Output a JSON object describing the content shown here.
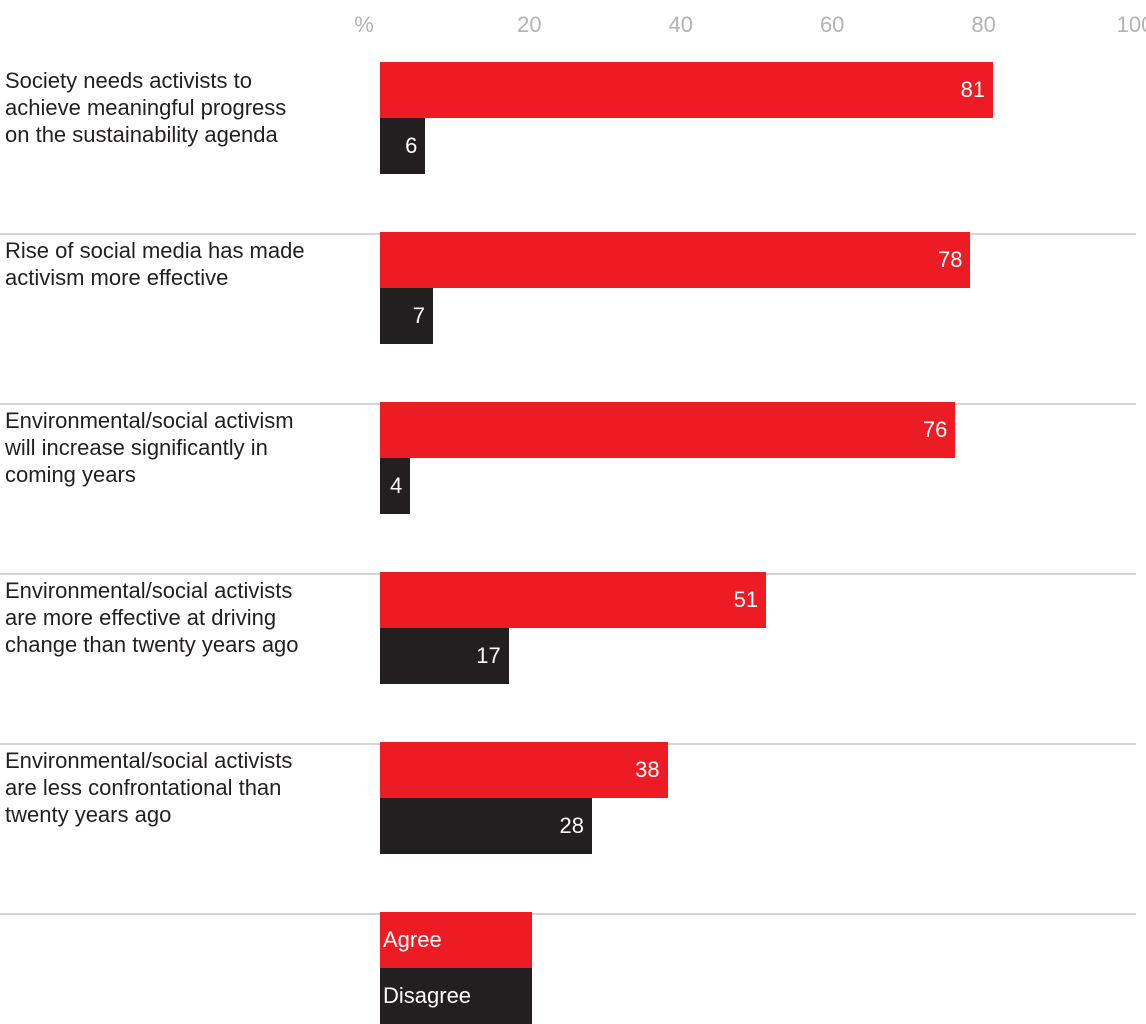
{
  "chart_data": {
    "type": "bar",
    "orientation": "horizontal",
    "axis_unit": "%",
    "xticks": [
      20,
      40,
      60,
      80,
      100
    ],
    "xlim": [
      0,
      100
    ],
    "categories": [
      "Society needs activists to\nachieve meaningful progress\non the sustainability agenda",
      "Rise of social media has made\nactivism more effective",
      "Environmental/social activism\nwill increase significantly in\ncoming years",
      "Environmental/social activists\nare more effective at driving\nchange than twenty years ago",
      "Environmental/social activists\nare less confrontational than\ntwenty years ago"
    ],
    "series": [
      {
        "name": "Agree",
        "values": [
          81,
          78,
          76,
          51,
          38
        ],
        "color": "#ed1c24"
      },
      {
        "name": "Disagree",
        "values": [
          6,
          7,
          4,
          17,
          28
        ],
        "color": "#231f20"
      }
    ],
    "legend": "bottom",
    "grid": false
  }
}
